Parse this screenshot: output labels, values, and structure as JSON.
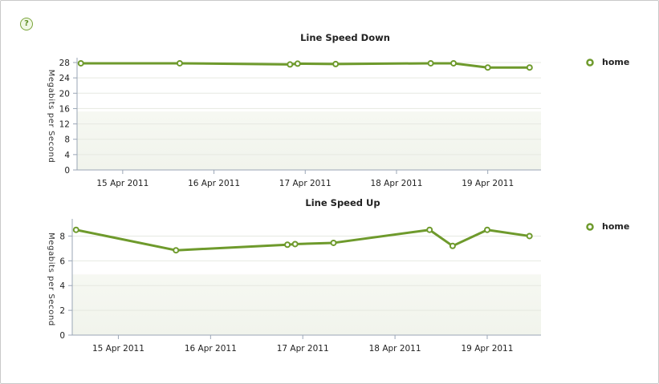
{
  "help_icon": {
    "label": "?"
  },
  "chart_data": [
    {
      "type": "line",
      "title": "Line Speed Down",
      "ylabel": "Megabits per Second",
      "xlabel": "",
      "ylim": [
        0,
        28
      ],
      "yticks": [
        0,
        4,
        8,
        12,
        16,
        20,
        24,
        28
      ],
      "xlim": [
        "2011-04-14T12:00",
        "2011-04-19T14:00"
      ],
      "xticks": [
        {
          "at": "2011-04-15",
          "label": "15  Apr 2011"
        },
        {
          "at": "2011-04-16",
          "label": "16  Apr 2011"
        },
        {
          "at": "2011-04-17",
          "label": "17  Apr 2011"
        },
        {
          "at": "2011-04-18",
          "label": "18  Apr 2011"
        },
        {
          "at": "2011-04-19",
          "label": "19  Apr 2011"
        }
      ],
      "legend_position": "right",
      "color": "#6e9a2c",
      "series": [
        {
          "name": "home",
          "x": [
            "2011-04-14T13:00",
            "2011-04-15T15:00",
            "2011-04-16T20:00",
            "2011-04-16T22:00",
            "2011-04-17T08:00",
            "2011-04-18T09:00",
            "2011-04-18T15:00",
            "2011-04-19T00:00",
            "2011-04-19T11:00"
          ],
          "values": [
            27.8,
            27.8,
            27.5,
            27.7,
            27.6,
            27.8,
            27.8,
            26.7,
            26.7
          ]
        }
      ]
    },
    {
      "type": "line",
      "title": "Line Speed Up",
      "ylabel": "Megabits per Second",
      "xlabel": "",
      "ylim": [
        0,
        9
      ],
      "yticks": [
        0,
        2,
        4,
        6,
        8
      ],
      "xlim": [
        "2011-04-14T12:00",
        "2011-04-19T14:00"
      ],
      "xticks": [
        {
          "at": "2011-04-15",
          "label": "15  Apr 2011"
        },
        {
          "at": "2011-04-16",
          "label": "16  Apr 2011"
        },
        {
          "at": "2011-04-17",
          "label": "17  Apr 2011"
        },
        {
          "at": "2011-04-18",
          "label": "18  Apr 2011"
        },
        {
          "at": "2011-04-19",
          "label": "19  Apr 2011"
        }
      ],
      "legend_position": "right",
      "color": "#6e9a2c",
      "series": [
        {
          "name": "home",
          "x": [
            "2011-04-14T13:00",
            "2011-04-15T15:00",
            "2011-04-16T20:00",
            "2011-04-16T22:00",
            "2011-04-17T08:00",
            "2011-04-18T09:00",
            "2011-04-18T15:00",
            "2011-04-19T00:00",
            "2011-04-19T11:00"
          ],
          "values": [
            8.5,
            6.85,
            7.3,
            7.35,
            7.45,
            8.5,
            7.2,
            8.5,
            8.0
          ]
        }
      ]
    }
  ]
}
